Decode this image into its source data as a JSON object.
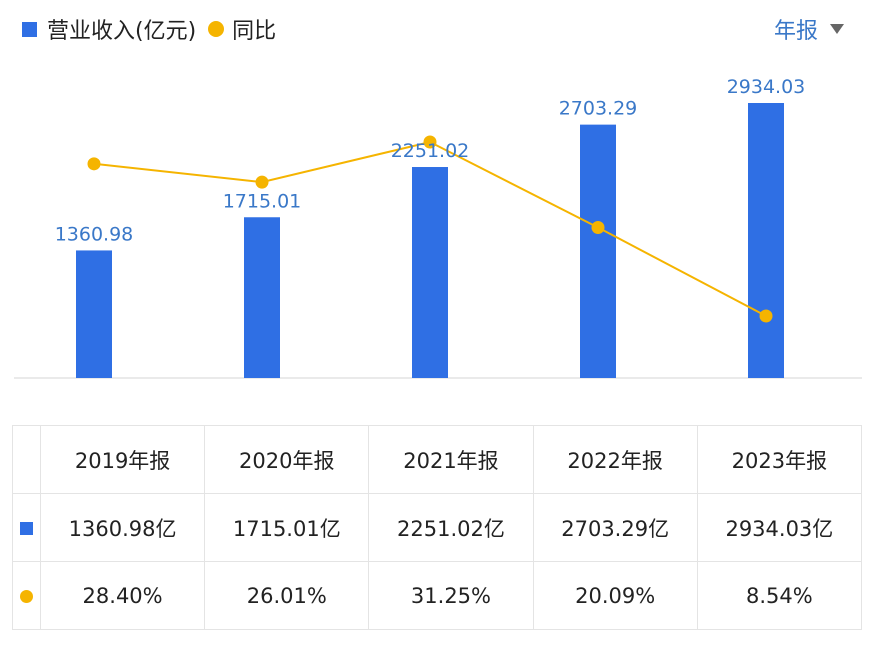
{
  "legend": {
    "bar_label": "营业收入(亿元)",
    "line_label": "同比"
  },
  "period_selector": {
    "label": "年报"
  },
  "colors": {
    "bar": "#2f6fe4",
    "line": "#f5b400",
    "value_label": "#3a78c8",
    "yoy_text": "#d9534f"
  },
  "chart_data": {
    "type": "bar",
    "categories": [
      "2019年报",
      "2020年报",
      "2021年报",
      "2022年报",
      "2023年报"
    ],
    "series": [
      {
        "name": "营业收入(亿元)",
        "type": "bar",
        "values": [
          1360.98,
          1715.01,
          2251.02,
          2703.29,
          2934.03
        ]
      },
      {
        "name": "同比",
        "type": "line",
        "values": [
          28.4,
          26.01,
          31.25,
          20.09,
          8.54
        ]
      }
    ],
    "value_labels": [
      "1360.98",
      "1715.01",
      "2251.02",
      "2703.29",
      "2934.03"
    ],
    "grid": false
  },
  "table": {
    "headers": [
      "2019年报",
      "2020年报",
      "2021年报",
      "2022年报",
      "2023年报"
    ],
    "revenue_row": [
      "1360.98亿",
      "1715.01亿",
      "2251.02亿",
      "2703.29亿",
      "2934.03亿"
    ],
    "yoy_row": [
      "28.40%",
      "26.01%",
      "31.25%",
      "20.09%",
      "8.54%"
    ]
  }
}
